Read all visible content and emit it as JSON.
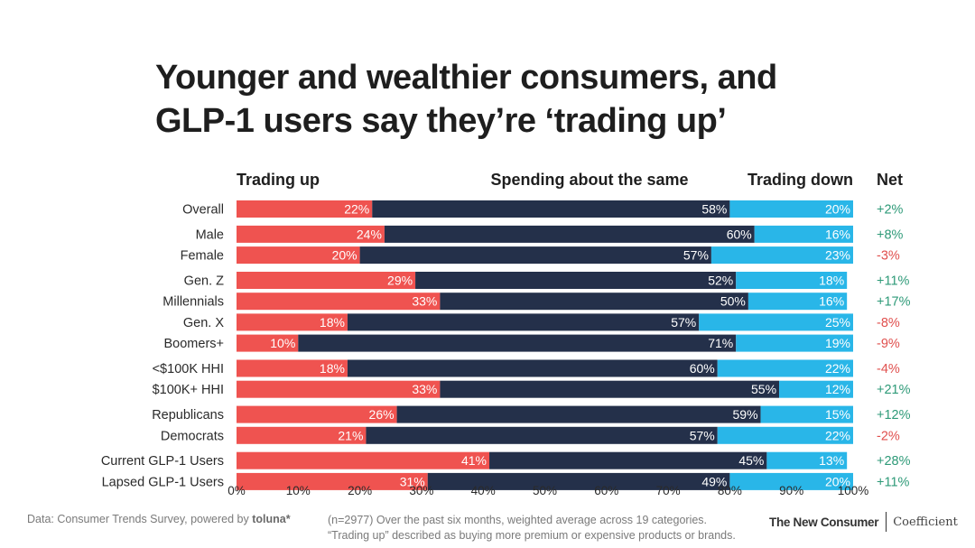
{
  "title_lines": [
    "Younger and wealthier consumers, and",
    "GLP-1 users say they’re ‘trading up’"
  ],
  "footer": {
    "source_prefix": "Data: Consumer Trends Survey, powered by ",
    "source_brand": "toluna*",
    "note_line1": "(n=2977) Over the past six months, weighted average across 19 categories.",
    "note_line2": "“Trading up” described as buying more premium or expensive products or brands.",
    "publisher": "The New Consumer",
    "partner": "Coefficient"
  },
  "colors": {
    "trading_up": "#ef5350",
    "same": "#24304a",
    "trading_down": "#29b6e8",
    "net_positive": "#2e9a78",
    "net_negative": "#e0504e"
  },
  "chart_data": {
    "type": "bar",
    "orientation": "horizontal",
    "stacked": true,
    "percent_stacked": true,
    "series_headers": [
      "Trading up",
      "Spending about the same",
      "Trading down"
    ],
    "net_header": "Net",
    "categories": [
      "Overall",
      "Male",
      "Female",
      "Gen. Z",
      "Millennials",
      "Gen. X",
      "Boomers+",
      "<$100K HHI",
      "$100K+ HHI",
      "Republicans",
      "Democrats",
      "Current GLP-1 Users",
      "Lapsed GLP-1 Users"
    ],
    "groups": [
      [
        0
      ],
      [
        1,
        2
      ],
      [
        3,
        4,
        5,
        6
      ],
      [
        7,
        8
      ],
      [
        9,
        10
      ],
      [
        11,
        12
      ]
    ],
    "series": [
      {
        "name": "Trading up",
        "values": [
          22,
          24,
          20,
          29,
          33,
          18,
          10,
          18,
          33,
          26,
          21,
          41,
          31
        ]
      },
      {
        "name": "Spending about the same",
        "values": [
          58,
          60,
          57,
          52,
          50,
          57,
          71,
          60,
          55,
          59,
          57,
          45,
          49
        ]
      },
      {
        "name": "Trading down",
        "values": [
          20,
          16,
          23,
          18,
          16,
          25,
          19,
          22,
          12,
          15,
          22,
          13,
          20
        ]
      }
    ],
    "net": [
      "+2%",
      "+8%",
      "-3%",
      "+11%",
      "+17%",
      "-8%",
      "-9%",
      "-4%",
      "+21%",
      "+12%",
      "-2%",
      "+28%",
      "+11%"
    ],
    "xlim": [
      0,
      100
    ],
    "x_ticks": [
      "0%",
      "10%",
      "20%",
      "30%",
      "40%",
      "50%",
      "60%",
      "70%",
      "80%",
      "90%",
      "100%"
    ]
  }
}
